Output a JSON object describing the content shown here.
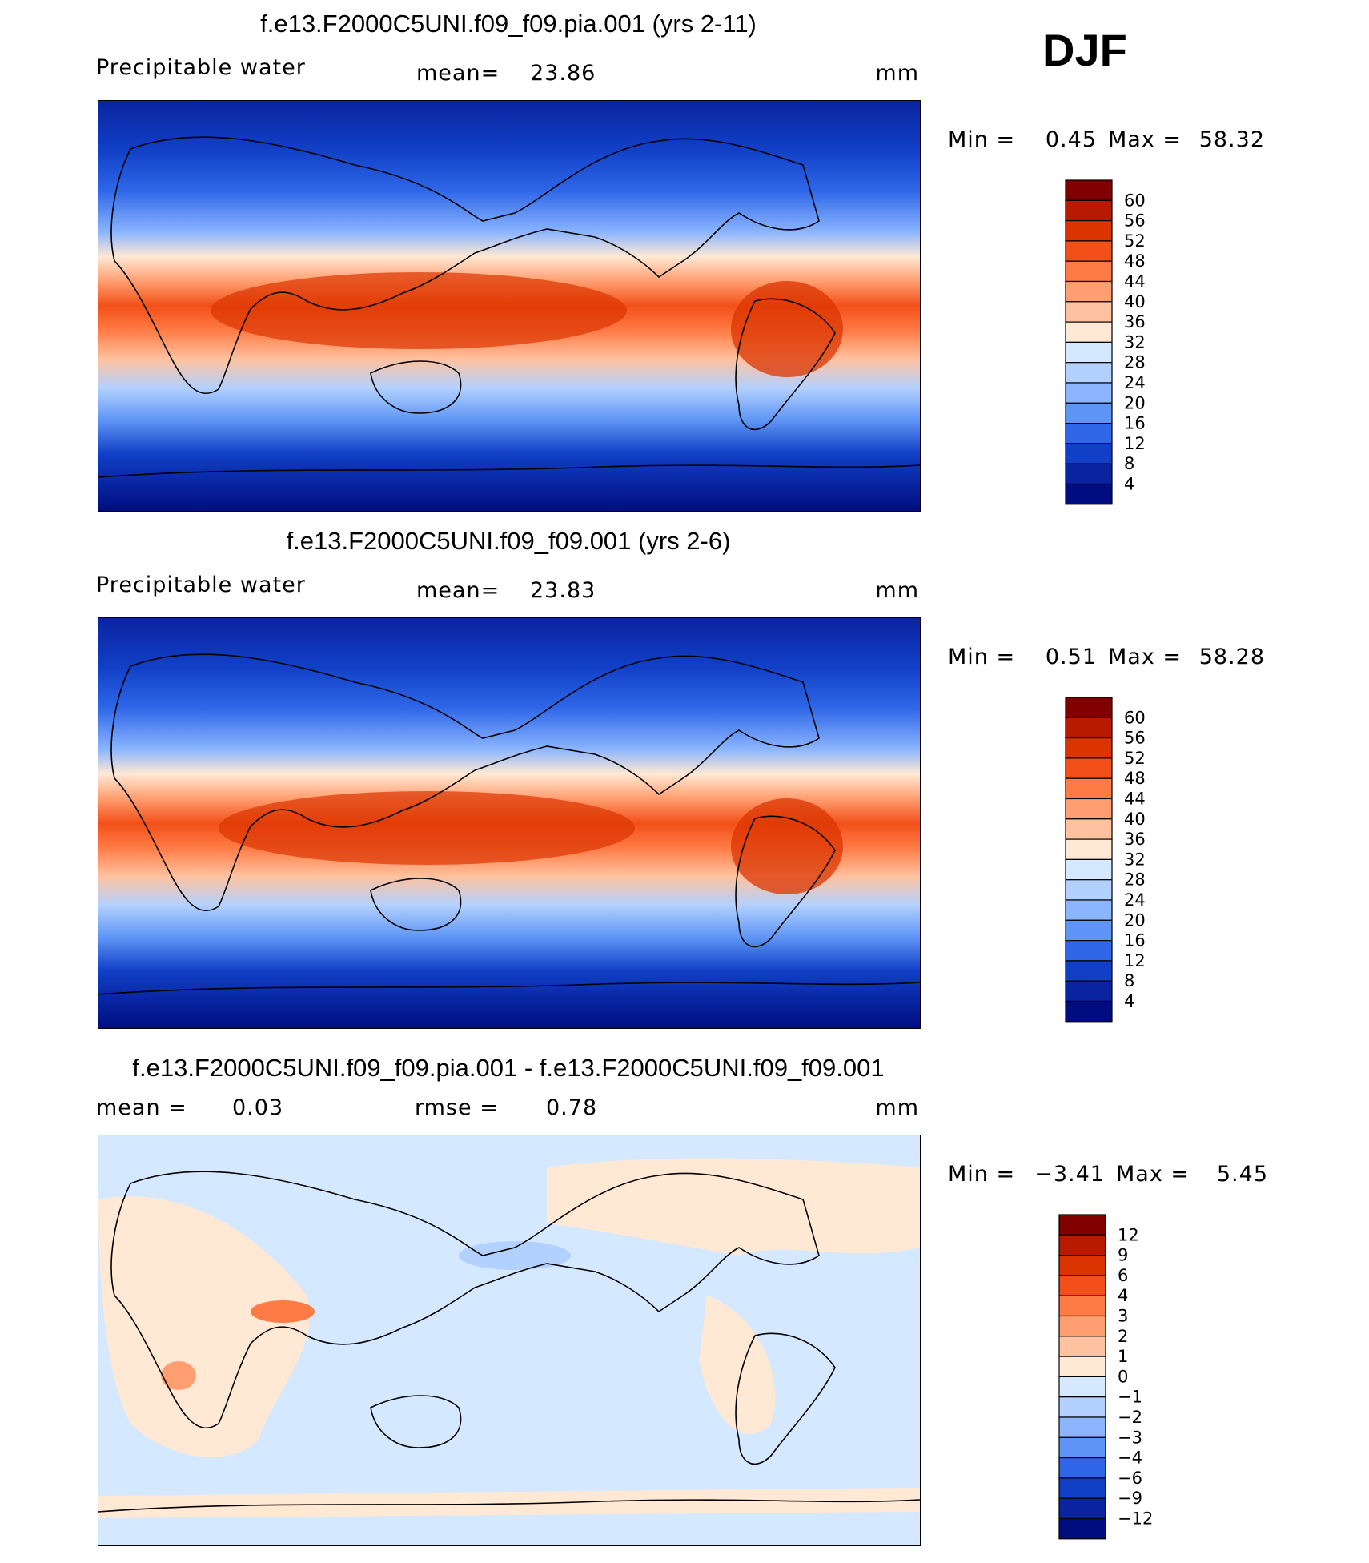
{
  "season": "DJF",
  "panels": [
    {
      "title": "f.e13.F2000C5UNI.f09_f09.pia.001 (yrs 2-11)",
      "variable": "Precipitable water",
      "mean_label": "mean=",
      "mean_value": "23.86",
      "units": "mm",
      "min_label": "Min =",
      "min_value": "0.45",
      "max_label": "Max =",
      "max_value": "58.32",
      "colorbar": {
        "labels": [
          "60",
          "56",
          "52",
          "48",
          "44",
          "40",
          "36",
          "32",
          "28",
          "24",
          "20",
          "16",
          "12",
          "8",
          "4"
        ],
        "colors": [
          "#800000",
          "#b81a00",
          "#db3400",
          "#f25018",
          "#ff7b45",
          "#ff9e70",
          "#ffc2a0",
          "#ffe8d4",
          "#d4e8ff",
          "#b3d1ff",
          "#8bb5ff",
          "#5d94f5",
          "#2f67e8",
          "#1140c7",
          "#0a23a0",
          "#000d80"
        ]
      }
    },
    {
      "title": "f.e13.F2000C5UNI.f09_f09.001 (yrs 2-6)",
      "variable": "Precipitable water",
      "mean_label": "mean=",
      "mean_value": "23.83",
      "units": "mm",
      "min_label": "Min =",
      "min_value": "0.51",
      "max_label": "Max =",
      "max_value": "58.28",
      "colorbar": {
        "labels": [
          "60",
          "56",
          "52",
          "48",
          "44",
          "40",
          "36",
          "32",
          "28",
          "24",
          "20",
          "16",
          "12",
          "8",
          "4"
        ],
        "colors": [
          "#800000",
          "#b81a00",
          "#db3400",
          "#f25018",
          "#ff7b45",
          "#ff9e70",
          "#ffc2a0",
          "#ffe8d4",
          "#d4e8ff",
          "#b3d1ff",
          "#8bb5ff",
          "#5d94f5",
          "#2f67e8",
          "#1140c7",
          "#0a23a0",
          "#000d80"
        ]
      }
    },
    {
      "title": "f.e13.F2000C5UNI.f09_f09.pia.001 - f.e13.F2000C5UNI.f09_f09.001",
      "mean_label": "mean =",
      "mean_value": "0.03",
      "rmse_label": "rmse =",
      "rmse_value": "0.78",
      "units": "mm",
      "min_label": "Min =",
      "min_value": "−3.41",
      "max_label": "Max =",
      "max_value": "5.45",
      "colorbar": {
        "labels": [
          "12",
          "9",
          "6",
          "4",
          "3",
          "2",
          "1",
          "0",
          "−1",
          "−2",
          "−3",
          "−4",
          "−6",
          "−9",
          "−12"
        ],
        "colors": [
          "#800000",
          "#b81a00",
          "#db3400",
          "#f25018",
          "#ff7b45",
          "#ff9e70",
          "#ffc2a0",
          "#ffe8d4",
          "#d4e8ff",
          "#b3d1ff",
          "#8bb5ff",
          "#5d94f5",
          "#2f67e8",
          "#1140c7",
          "#0a23a0",
          "#000d80"
        ]
      }
    }
  ],
  "chart_data": [
    {
      "type": "heatmap",
      "title": "f.e13.F2000C5UNI.f09_f09.pia.001 (yrs 2-11)",
      "variable": "Precipitable water",
      "units": "mm",
      "mean": 23.86,
      "min": 0.45,
      "max": 58.32,
      "contour_levels": [
        4,
        8,
        12,
        16,
        20,
        24,
        28,
        32,
        36,
        40,
        44,
        48,
        52,
        56,
        60
      ]
    },
    {
      "type": "heatmap",
      "title": "f.e13.F2000C5UNI.f09_f09.001 (yrs 2-6)",
      "variable": "Precipitable water",
      "units": "mm",
      "mean": 23.83,
      "min": 0.51,
      "max": 58.28,
      "contour_levels": [
        4,
        8,
        12,
        16,
        20,
        24,
        28,
        32,
        36,
        40,
        44,
        48,
        52,
        56,
        60
      ]
    },
    {
      "type": "heatmap",
      "title": "f.e13.F2000C5UNI.f09_f09.pia.001 - f.e13.F2000C5UNI.f09_f09.001",
      "units": "mm",
      "mean": 0.03,
      "rmse": 0.78,
      "min": -3.41,
      "max": 5.45,
      "contour_levels": [
        -12,
        -9,
        -6,
        -4,
        -3,
        -2,
        -1,
        0,
        1,
        2,
        3,
        4,
        6,
        9,
        12
      ]
    }
  ]
}
